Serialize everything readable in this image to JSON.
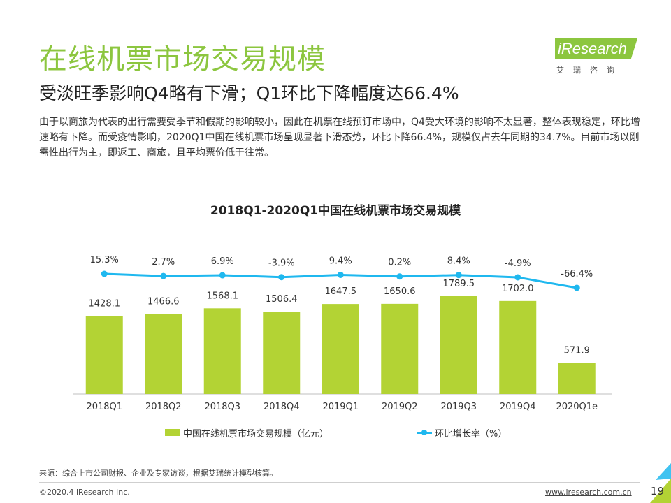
{
  "header": {
    "title": "在线机票市场交易规模",
    "subtitle": "受淡旺季影响Q4略有下滑；Q1环比下降幅度达66.4%",
    "intro": "由于以商旅为代表的出行需要受季节和假期的影响较小，因此在机票在线预订市场中，Q4受大环境的影响不太显著，整体表现稳定，环比增速略有下降。而受疫情影响，2020Q1中国在线机票市场呈现显著下滑态势，环比下降66.4%，规模仅占去年同期的34.7%。目前市场以刚需性出行为主，即返工、商旅，且平均票价低于往常。"
  },
  "logo": {
    "wordmark": "iResearch",
    "chinese": "艾瑞咨询"
  },
  "chart_data": {
    "type": "bar",
    "title": "2018Q1-2020Q1中国在线机票市场交易规模",
    "categories": [
      "2018Q1",
      "2018Q2",
      "2018Q3",
      "2018Q4",
      "2019Q1",
      "2019Q2",
      "2019Q3",
      "2019Q4",
      "2020Q1e"
    ],
    "series": [
      {
        "name": "中国在线机票市场交易规模（亿元）",
        "type": "bar",
        "values": [
          1428.1,
          1466.6,
          1568.1,
          1506.4,
          1647.5,
          1650.6,
          1789.5,
          1702.0,
          571.9
        ],
        "labels": [
          "1428.1",
          "1466.6",
          "1568.1",
          "1506.4",
          "1647.5",
          "1650.6",
          "1789.5",
          "1702.0",
          "571.9"
        ],
        "color": "#b3d334"
      },
      {
        "name": "环比增长率（%）",
        "type": "line",
        "values": [
          15.3,
          2.7,
          6.9,
          -3.9,
          9.4,
          0.2,
          8.4,
          -4.9,
          -66.4
        ],
        "labels": [
          "15.3%",
          "2.7%",
          "6.9%",
          "-3.9%",
          "9.4%",
          "0.2%",
          "8.4%",
          "-4.9%",
          "-66.4%"
        ],
        "color": "#1fb8ef"
      }
    ],
    "grid": false,
    "legend": "bottom"
  },
  "footer": {
    "source": "来源：综合上市公司财报、企业及专家访谈，根据艾瑞统计模型核算。",
    "copyright": "©2020.4 iResearch Inc.",
    "website": "www.iresearch.com.cn",
    "page_number": "19"
  },
  "colors": {
    "title_green": "#8cc63f",
    "bar_green": "#b3d334",
    "line_blue": "#1fb8ef"
  }
}
